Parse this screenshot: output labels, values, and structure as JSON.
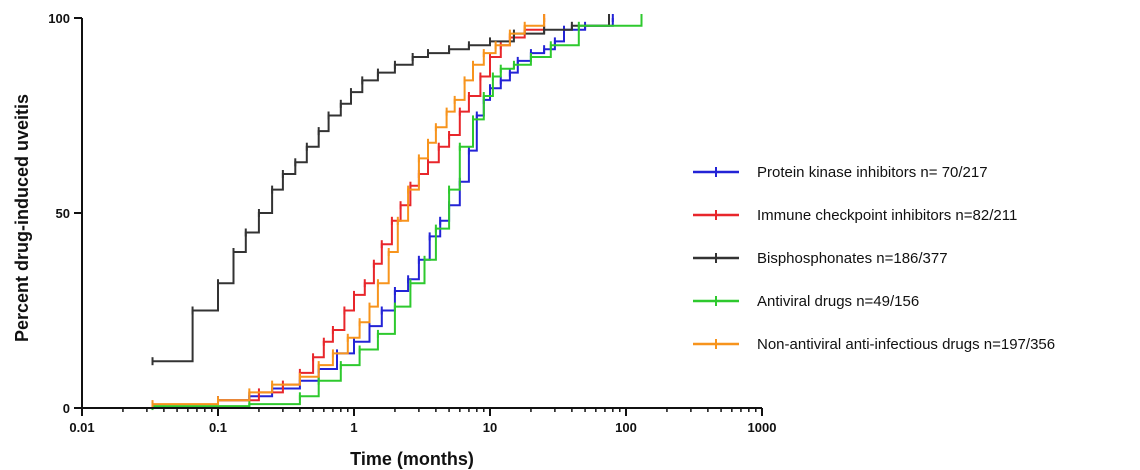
{
  "chart_data": {
    "type": "line",
    "xlabel": "Time (months)",
    "ylabel": "Percent drug-induced uveitis",
    "x_scale": "log",
    "xlim": [
      0.01,
      1000
    ],
    "ylim": [
      0,
      100
    ],
    "x_ticks": [
      0.01,
      0.1,
      1,
      10,
      100,
      1000
    ],
    "x_tick_labels": [
      "0.01",
      "0.1",
      "1",
      "10",
      "100",
      "1000"
    ],
    "y_ticks": [
      0,
      50,
      100
    ],
    "y_tick_labels": [
      "0",
      "50",
      "100"
    ],
    "legend_position": "right",
    "series": [
      {
        "name": "Protein kinase inhibitors n= 70/217",
        "color": "#2323d6",
        "points": [
          [
            0.1,
            2
          ],
          [
            0.17,
            3
          ],
          [
            0.25,
            5
          ],
          [
            0.4,
            7
          ],
          [
            0.55,
            10
          ],
          [
            0.75,
            14
          ],
          [
            1,
            17
          ],
          [
            1.3,
            21
          ],
          [
            1.6,
            25
          ],
          [
            2,
            30
          ],
          [
            2.5,
            33
          ],
          [
            3,
            38
          ],
          [
            3.6,
            44
          ],
          [
            4.3,
            48
          ],
          [
            5,
            52
          ],
          [
            6,
            58
          ],
          [
            7,
            66
          ],
          [
            8,
            75
          ],
          [
            9,
            79
          ],
          [
            10,
            82
          ],
          [
            12,
            84
          ],
          [
            14,
            86
          ],
          [
            16,
            89
          ],
          [
            20,
            91
          ],
          [
            25,
            92
          ],
          [
            30,
            94
          ],
          [
            35,
            97
          ],
          [
            50,
            98
          ],
          [
            80,
            100
          ]
        ]
      },
      {
        "name": "Immune checkpoint inhibitors n=82/211",
        "color": "#e8262b",
        "points": [
          [
            0.1,
            2
          ],
          [
            0.2,
            4
          ],
          [
            0.3,
            6
          ],
          [
            0.4,
            9
          ],
          [
            0.5,
            13
          ],
          [
            0.6,
            17
          ],
          [
            0.7,
            20
          ],
          [
            0.85,
            25
          ],
          [
            1,
            29
          ],
          [
            1.2,
            32
          ],
          [
            1.4,
            37
          ],
          [
            1.6,
            42
          ],
          [
            1.9,
            48
          ],
          [
            2.2,
            52
          ],
          [
            2.6,
            57
          ],
          [
            3,
            60
          ],
          [
            3.5,
            63
          ],
          [
            4.2,
            67
          ],
          [
            5,
            70
          ],
          [
            6,
            76
          ],
          [
            7,
            80
          ],
          [
            8.5,
            85
          ],
          [
            10,
            90
          ],
          [
            12,
            93
          ],
          [
            14,
            95
          ],
          [
            18,
            97
          ],
          [
            25,
            100
          ]
        ]
      },
      {
        "name": "Bisphosphonates n=186/377",
        "color": "#333333",
        "points": [
          [
            0.033,
            12
          ],
          [
            0.065,
            25
          ],
          [
            0.1,
            32
          ],
          [
            0.13,
            40
          ],
          [
            0.16,
            45
          ],
          [
            0.2,
            50
          ],
          [
            0.25,
            56
          ],
          [
            0.3,
            60
          ],
          [
            0.37,
            63
          ],
          [
            0.45,
            67
          ],
          [
            0.55,
            71
          ],
          [
            0.65,
            75
          ],
          [
            0.8,
            78
          ],
          [
            0.95,
            81
          ],
          [
            1.15,
            84
          ],
          [
            1.5,
            86
          ],
          [
            2,
            88
          ],
          [
            2.7,
            90
          ],
          [
            3.5,
            91
          ],
          [
            5,
            92
          ],
          [
            7,
            93
          ],
          [
            10,
            94
          ],
          [
            15,
            96
          ],
          [
            25,
            97
          ],
          [
            40,
            98
          ],
          [
            75,
            100
          ]
        ]
      },
      {
        "name": "Antiviral drugs n=49/156",
        "color": "#2ec92e",
        "points": [
          [
            0.033,
            0.5
          ],
          [
            0.17,
            1
          ],
          [
            0.4,
            3
          ],
          [
            0.55,
            7
          ],
          [
            0.8,
            11
          ],
          [
            1.1,
            15
          ],
          [
            1.5,
            19
          ],
          [
            2,
            26
          ],
          [
            2.6,
            32
          ],
          [
            3.3,
            38
          ],
          [
            4,
            46
          ],
          [
            5,
            56
          ],
          [
            6,
            67
          ],
          [
            7.5,
            74
          ],
          [
            9,
            80
          ],
          [
            10.5,
            85
          ],
          [
            12,
            87
          ],
          [
            15,
            88
          ],
          [
            20,
            90
          ],
          [
            28,
            93
          ],
          [
            45,
            98
          ],
          [
            130,
            100
          ]
        ]
      },
      {
        "name": "Non-antiviral anti-infectious drugs n=197/356",
        "color": "#f7941d",
        "points": [
          [
            0.033,
            1
          ],
          [
            0.1,
            2
          ],
          [
            0.17,
            4
          ],
          [
            0.25,
            6
          ],
          [
            0.4,
            8
          ],
          [
            0.55,
            11
          ],
          [
            0.7,
            14
          ],
          [
            0.9,
            18
          ],
          [
            1.1,
            22
          ],
          [
            1.3,
            26
          ],
          [
            1.5,
            32
          ],
          [
            1.8,
            40
          ],
          [
            2.1,
            48
          ],
          [
            2.5,
            56
          ],
          [
            3,
            64
          ],
          [
            3.5,
            68
          ],
          [
            4,
            72
          ],
          [
            4.8,
            76
          ],
          [
            5.5,
            79
          ],
          [
            6.5,
            84
          ],
          [
            7.5,
            88
          ],
          [
            9,
            91
          ],
          [
            11,
            93
          ],
          [
            14,
            96
          ],
          [
            18,
            98
          ],
          [
            25,
            100
          ]
        ]
      }
    ]
  }
}
